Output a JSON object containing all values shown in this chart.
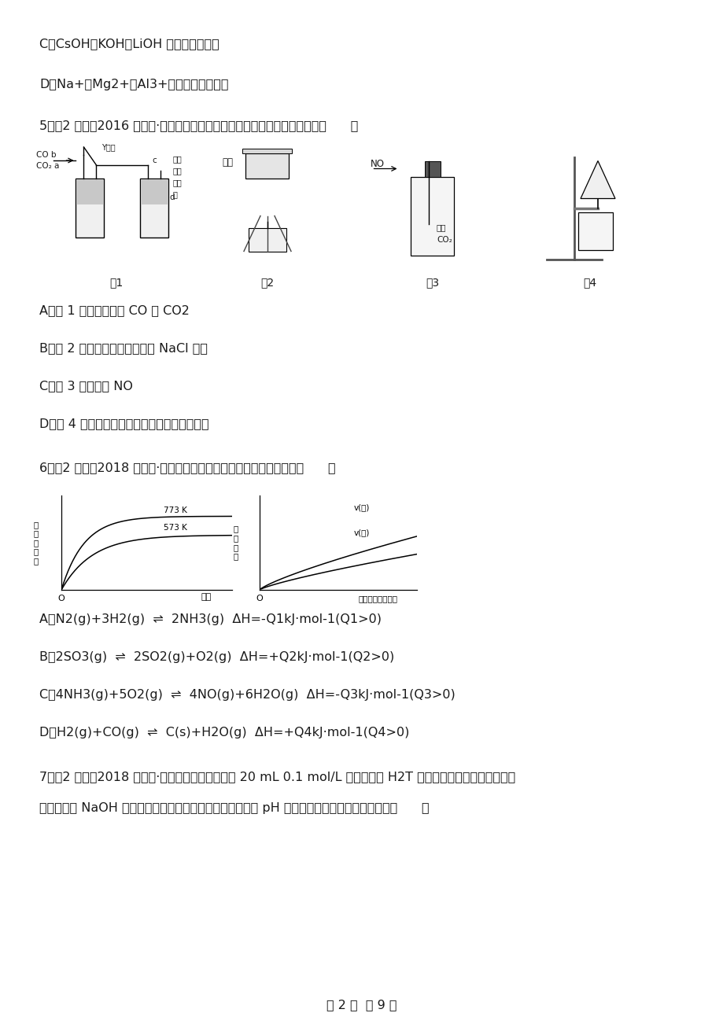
{
  "bg_color": "#ffffff",
  "text_color": "#1a1a1a",
  "page_width": 9.2,
  "page_height": 13.02,
  "dpi": 100,
  "font_size": 11.5,
  "font_size_small": 8.0,
  "lines_top": [
    "C．CsOH、KOH、LiOH 的碱性依次减弱",
    "D．Na+、Mg2+、Al3+的氧化性依次减弱",
    "5．（2 分）（2016 高三上·盘山期末）下列实验装置能达到相关实验目的是（      ）"
  ],
  "lines_q5_options": [
    "A．图 1 用于分离收集 CO 和 CO2",
    "B．图 2 可用于从食盐水中提取 NaCl 晶体",
    "C．图 3 用于收集 NO",
    "D．图 4 用于氢氧化铁胶体和硫酸钠溶液的分离"
  ],
  "line_q6": "6．（2 分）（2018 高二上·惠州期末）下列反应中符合下列图像的是（      ）",
  "lines_q6_options": [
    "A．N2(g)+3H2(g)  ⇌  2NH3(g)  ΔH=-Q1kJ·mol-1(Q1>0)",
    "B．2SO3(g)  ⇌  2SO2(g)+O2(g)  ΔH=+Q2kJ·mol-1(Q2>0)",
    "C．4NH3(g)+5O2(g)  ⇌  4NO(g)+6H2O(g)  ΔH=-Q3kJ·mol-1(Q3>0)",
    "D．H2(g)+CO(g)  ⇌  C(s)+H2O(g)  ΔH=+Q4kJ·mol-1(Q4>0)"
  ],
  "lines_q7": [
    "7．（2 分）（2018 高二上·成都月考）常温下，向 20 mL 0.1 mol/L 酒石酸（用 H2T 表示）溶液中逐滴滴加等物质",
    "的量浓度的 NaOH 溶液。有关微粒的物质的量与混合溶液的 pH 有如图关系。下列说法正确的是（      ）"
  ],
  "footer": "第 2 页  共 9 页"
}
